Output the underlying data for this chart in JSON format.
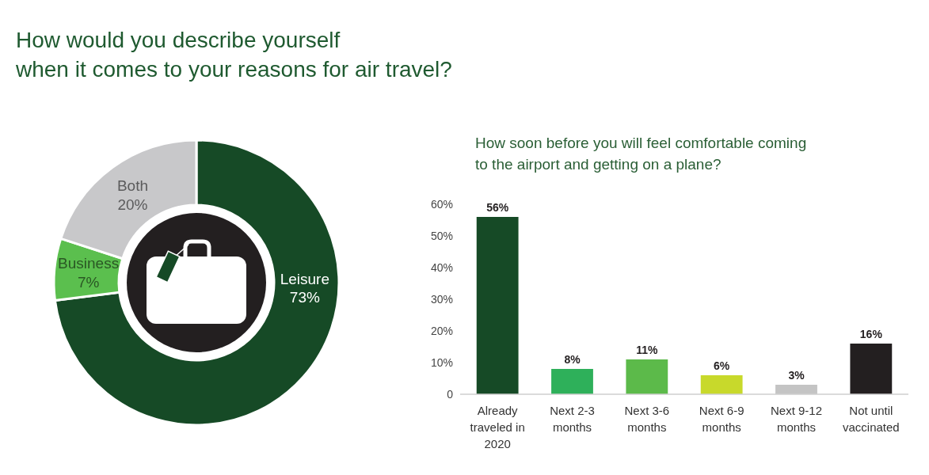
{
  "chart_data": [
    {
      "type": "donut",
      "title": "How would you describe yourself\nwhen it comes to your reasons for air travel?",
      "categories": [
        "Leisure",
        "Business",
        "Both"
      ],
      "values": [
        73,
        7,
        20
      ],
      "colors": [
        "#164a26",
        "#5bbf4e",
        "#c8c8ca"
      ],
      "value_labels": [
        "73%",
        "7%",
        "20%"
      ]
    },
    {
      "type": "bar",
      "title": "How soon before you will feel comfortable coming\nto the airport and getting on a plane?",
      "categories": [
        "Already traveled in 2020",
        "Next 2-3 months",
        "Next 3-6 months",
        "Next 6-9 months",
        "Next 9-12 months",
        "Not until vaccinated"
      ],
      "values": [
        56,
        8,
        11,
        6,
        3,
        16
      ],
      "colors": [
        "#164a26",
        "#2eb05a",
        "#5cba4a",
        "#c8d92b",
        "#c4c4c4",
        "#231f20"
      ],
      "value_labels": [
        "56%",
        "8%",
        "11%",
        "6%",
        "3%",
        "16%"
      ],
      "ylim": [
        0,
        60
      ],
      "yticks": [
        0,
        {
          "value": 10,
          "label": "10%"
        },
        {
          "value": 20,
          "label": "20%"
        },
        {
          "value": 30,
          "label": "30%"
        },
        {
          "value": 40,
          "label": "40%"
        },
        {
          "value": 50,
          "label": "50%"
        },
        {
          "value": 60,
          "label": "60%"
        }
      ]
    }
  ]
}
